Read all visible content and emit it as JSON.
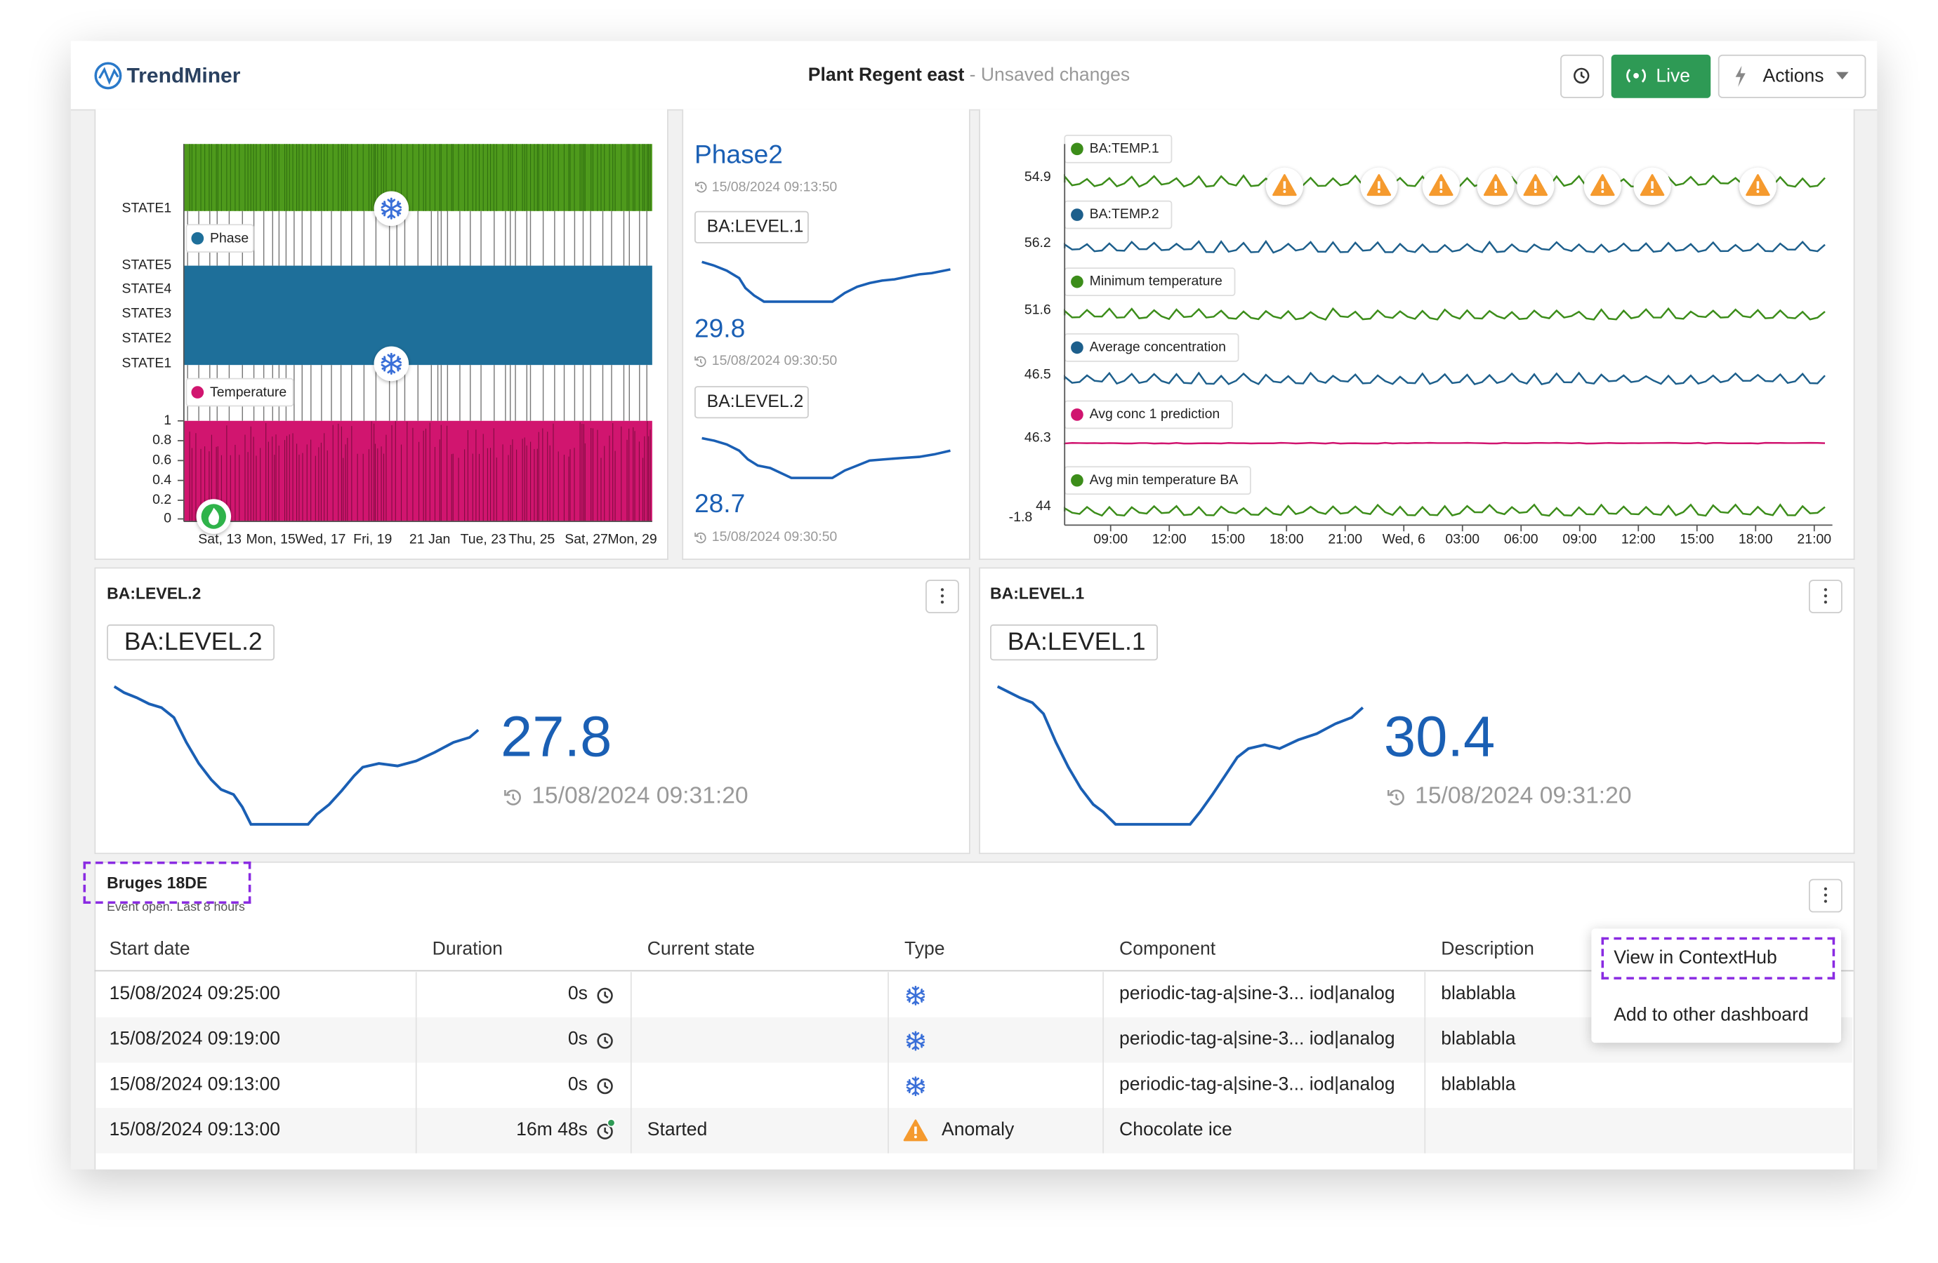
{
  "header": {
    "logo": "TrendMiner",
    "title": "Plant Regent east",
    "subtitle": " - Unsaved changes",
    "live": "Live",
    "actions": "Actions"
  },
  "state_chart": {
    "legend": [
      "Phase",
      "Temperature"
    ],
    "state_labels": [
      "STATE1",
      "STATE5",
      "STATE4",
      "STATE3",
      "STATE2",
      "STATE1"
    ],
    "y_ticks": [
      "1",
      "0.8",
      "0.6",
      "0.4",
      "0.2",
      "0"
    ],
    "x_ticks": [
      "Sat, 13",
      "Mon, 15",
      "Wed, 17",
      "Fri, 19",
      "21 Jan",
      "Tue, 23",
      "Thu, 25",
      "Sat, 27",
      "Mon, 29"
    ]
  },
  "value_tiles": {
    "title": "Phase2",
    "time": "15/08/2024 09:13:50",
    "items": [
      {
        "tag": "BA:LEVEL.1",
        "value": "29.8",
        "time": "15/08/2024 09:30:50"
      },
      {
        "tag": "BA:LEVEL.2",
        "value": "28.7",
        "time": "15/08/2024 09:30:50"
      }
    ]
  },
  "trend_chart": {
    "series": [
      {
        "name": "BA:TEMP.1",
        "color": "#3c8d1a",
        "label": "54.9"
      },
      {
        "name": "BA:TEMP.2",
        "color": "#1d5f8c",
        "label": "56.2"
      },
      {
        "name": "Minimum temperature",
        "color": "#3c8d1a",
        "label": "51.6"
      },
      {
        "name": "Average concentration",
        "color": "#1d5f8c",
        "label": "46.5"
      },
      {
        "name": "Avg conc 1 prediction",
        "color": "#d0146f",
        "label": "46.3"
      },
      {
        "name": "Avg min temperature BA",
        "color": "#3c8d1a",
        "label": "44"
      }
    ],
    "extra_label": "-1.8",
    "x_ticks": [
      "09:00",
      "12:00",
      "15:00",
      "18:00",
      "21:00",
      "Wed, 6",
      "03:00",
      "06:00",
      "09:00",
      "12:00",
      "15:00",
      "18:00",
      "21:00"
    ]
  },
  "tiles": [
    {
      "header": "BA:LEVEL.2",
      "tag": "BA:LEVEL.2",
      "value": "27.8",
      "time": "15/08/2024 09:31:20"
    },
    {
      "header": "BA:LEVEL.1",
      "tag": "BA:LEVEL.1",
      "value": "30.4",
      "time": "15/08/2024 09:31:20"
    }
  ],
  "table": {
    "title": "Bruges 18DE",
    "subtitle": "Event open. Last 8 hours",
    "columns": [
      "Start date",
      "Duration",
      "Current state",
      "Type",
      "Component",
      "Description"
    ],
    "rows": [
      {
        "start": "15/08/2024 09:25:00",
        "duration": "0s",
        "component": "periodic-tag-a|sine-3... iod|analog",
        "description": "blablabla"
      },
      {
        "start": "15/08/2024 09:19:00",
        "duration": "0s",
        "component": "periodic-tag-a|sine-3... iod|analog",
        "description": "blablabla"
      },
      {
        "start": "15/08/2024 09:13:00",
        "duration": "0s",
        "component": "periodic-tag-a|sine-3... iod|analog",
        "description": "blablabla"
      },
      {
        "start": "15/08/2024 09:13:00",
        "duration": "16m 48s",
        "state": "Started",
        "type": "Anomaly",
        "component": "Chocolate ice"
      }
    ]
  },
  "menu": [
    "View in ContextHub",
    "Add to other dashboard"
  ]
}
